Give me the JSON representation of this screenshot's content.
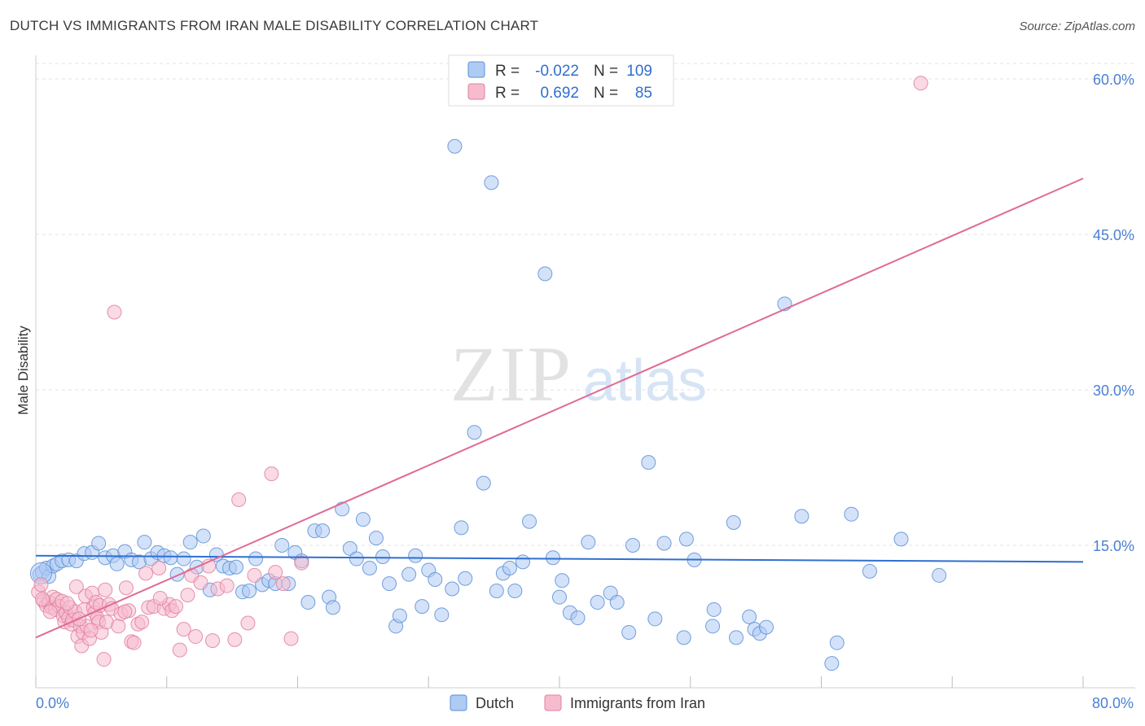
{
  "title": "DUTCH VS IMMIGRANTS FROM IRAN MALE DISABILITY CORRELATION CHART",
  "source": "Source: ZipAtlas.com",
  "watermark": {
    "zip": "ZIP",
    "atlas": "atlas"
  },
  "legend_top": [
    {
      "r_label": "R =",
      "r_value": "-0.022",
      "n_label": "N =",
      "n_value": "109",
      "fill": "#aecbf4",
      "stroke": "#5b8fd6"
    },
    {
      "r_label": "R =",
      "r_value": "0.692",
      "n_label": "N =",
      "n_value": "85",
      "fill": "#f6bccd",
      "stroke": "#e07fa0"
    }
  ],
  "legend_bottom": [
    {
      "label": "Dutch",
      "fill": "#aecbf4",
      "stroke": "#5b8fd6"
    },
    {
      "label": "Immigrants from Iran",
      "fill": "#f6bccd",
      "stroke": "#e07fa0"
    }
  ],
  "chart_data": {
    "type": "scatter",
    "title": "DUTCH VS IMMIGRANTS FROM IRAN MALE DISABILITY CORRELATION CHART",
    "xlabel": "",
    "ylabel": "Male Disability",
    "xlim": [
      0,
      80
    ],
    "ylim": [
      0,
      62
    ],
    "x_tick_labels": [
      "0.0%",
      "80.0%"
    ],
    "y_ticks": [
      15,
      30,
      45,
      60
    ],
    "y_tick_labels": [
      "15.0%",
      "30.0%",
      "45.0%",
      "60.0%"
    ],
    "grid": true,
    "legend_position": "top-center",
    "series": [
      {
        "name": "Dutch",
        "color": "#5b8fd6",
        "fill": "#aecbf4",
        "trend": {
          "x": [
            0,
            80
          ],
          "y": [
            14.0,
            13.4
          ]
        },
        "points": [
          [
            0.3,
            12.2
          ],
          [
            0.5,
            12.4
          ],
          [
            0.8,
            12.8
          ],
          [
            1.0,
            12.0
          ],
          [
            1.3,
            13.0
          ],
          [
            1.6,
            13.2
          ],
          [
            2.0,
            13.5
          ],
          [
            2.5,
            13.6
          ],
          [
            3.1,
            13.5
          ],
          [
            3.7,
            14.2
          ],
          [
            4.3,
            14.3
          ],
          [
            4.8,
            15.2
          ],
          [
            5.3,
            13.8
          ],
          [
            5.9,
            14.0
          ],
          [
            6.2,
            13.2
          ],
          [
            6.8,
            14.4
          ],
          [
            7.3,
            13.6
          ],
          [
            7.9,
            13.4
          ],
          [
            8.3,
            15.3
          ],
          [
            8.8,
            13.7
          ],
          [
            9.3,
            14.3
          ],
          [
            9.8,
            14.0
          ],
          [
            10.3,
            13.8
          ],
          [
            10.8,
            12.2
          ],
          [
            11.3,
            13.7
          ],
          [
            11.8,
            15.3
          ],
          [
            12.3,
            12.9
          ],
          [
            12.8,
            15.9
          ],
          [
            13.3,
            10.7
          ],
          [
            13.8,
            14.1
          ],
          [
            14.3,
            13.0
          ],
          [
            14.8,
            12.8
          ],
          [
            15.3,
            12.9
          ],
          [
            15.8,
            10.5
          ],
          [
            16.3,
            10.6
          ],
          [
            16.8,
            13.7
          ],
          [
            17.3,
            11.2
          ],
          [
            17.8,
            11.6
          ],
          [
            18.3,
            11.3
          ],
          [
            18.8,
            15.0
          ],
          [
            19.3,
            11.3
          ],
          [
            19.8,
            14.3
          ],
          [
            20.3,
            13.5
          ],
          [
            20.8,
            9.5
          ],
          [
            21.3,
            16.4
          ],
          [
            21.9,
            16.4
          ],
          [
            22.4,
            10.0
          ],
          [
            22.7,
            9.0
          ],
          [
            23.4,
            18.5
          ],
          [
            24.0,
            14.7
          ],
          [
            24.5,
            13.7
          ],
          [
            25.0,
            17.5
          ],
          [
            25.5,
            12.8
          ],
          [
            26.0,
            15.7
          ],
          [
            26.5,
            13.9
          ],
          [
            27.0,
            11.3
          ],
          [
            27.5,
            7.2
          ],
          [
            27.8,
            8.2
          ],
          [
            28.5,
            12.2
          ],
          [
            29.0,
            14.0
          ],
          [
            29.5,
            9.1
          ],
          [
            30.0,
            12.6
          ],
          [
            30.5,
            11.7
          ],
          [
            31.0,
            8.3
          ],
          [
            31.8,
            10.8
          ],
          [
            32.0,
            53.5
          ],
          [
            32.5,
            16.7
          ],
          [
            32.8,
            11.8
          ],
          [
            33.5,
            25.9
          ],
          [
            34.2,
            21.0
          ],
          [
            34.8,
            50.0
          ],
          [
            35.2,
            10.6
          ],
          [
            35.7,
            12.3
          ],
          [
            36.2,
            12.8
          ],
          [
            36.6,
            10.6
          ],
          [
            37.2,
            13.4
          ],
          [
            37.7,
            17.3
          ],
          [
            38.9,
            41.2
          ],
          [
            39.5,
            13.8
          ],
          [
            40.0,
            10.0
          ],
          [
            40.2,
            11.6
          ],
          [
            40.8,
            8.5
          ],
          [
            41.4,
            8.0
          ],
          [
            42.2,
            15.3
          ],
          [
            42.9,
            9.5
          ],
          [
            43.9,
            10.4
          ],
          [
            44.4,
            9.5
          ],
          [
            45.3,
            6.6
          ],
          [
            45.6,
            15.0
          ],
          [
            46.8,
            23.0
          ],
          [
            47.3,
            7.9
          ],
          [
            48.0,
            15.2
          ],
          [
            49.5,
            6.1
          ],
          [
            49.7,
            15.6
          ],
          [
            50.3,
            13.6
          ],
          [
            51.7,
            7.2
          ],
          [
            51.8,
            8.8
          ],
          [
            53.3,
            17.2
          ],
          [
            53.5,
            6.1
          ],
          [
            54.5,
            8.1
          ],
          [
            54.9,
            6.9
          ],
          [
            55.3,
            6.5
          ],
          [
            55.8,
            7.1
          ],
          [
            57.2,
            38.3
          ],
          [
            58.5,
            17.8
          ],
          [
            60.8,
            3.6
          ],
          [
            61.2,
            5.6
          ],
          [
            62.3,
            18.0
          ],
          [
            63.7,
            12.5
          ],
          [
            66.1,
            15.6
          ],
          [
            69.0,
            12.1
          ]
        ],
        "point_sizes": [
          [
            0.3,
            14
          ],
          [
            0.5,
            12
          ],
          [
            0.8,
            11
          ]
        ]
      },
      {
        "name": "Immigrants from Iran",
        "color": "#e07fa0",
        "fill": "#f6bccd",
        "trend": {
          "x": [
            0,
            80
          ],
          "y": [
            6.1,
            50.4
          ]
        },
        "points": [
          [
            0.2,
            10.5
          ],
          [
            0.4,
            11.2
          ],
          [
            0.6,
            9.6
          ],
          [
            0.8,
            9.2
          ],
          [
            1.0,
            9.5
          ],
          [
            1.2,
            9.0
          ],
          [
            1.3,
            10.0
          ],
          [
            1.5,
            8.8
          ],
          [
            1.6,
            9.8
          ],
          [
            1.8,
            9.1
          ],
          [
            2.0,
            9.6
          ],
          [
            2.1,
            8.2
          ],
          [
            2.2,
            7.6
          ],
          [
            2.3,
            8.5
          ],
          [
            2.5,
            8.0
          ],
          [
            2.6,
            9.0
          ],
          [
            2.7,
            7.4
          ],
          [
            2.8,
            7.8
          ],
          [
            3.0,
            8.6
          ],
          [
            3.1,
            11.0
          ],
          [
            3.2,
            6.2
          ],
          [
            3.4,
            7.2
          ],
          [
            3.5,
            5.3
          ],
          [
            3.6,
            6.6
          ],
          [
            3.7,
            8.8
          ],
          [
            3.8,
            10.1
          ],
          [
            3.9,
            7.2
          ],
          [
            4.1,
            6.0
          ],
          [
            4.3,
            10.4
          ],
          [
            4.4,
            9.0
          ],
          [
            4.5,
            8.5
          ],
          [
            4.6,
            9.5
          ],
          [
            4.7,
            8.0
          ],
          [
            4.8,
            7.6
          ],
          [
            4.9,
            9.2
          ],
          [
            5.0,
            6.6
          ],
          [
            5.2,
            4.0
          ],
          [
            5.3,
            10.7
          ],
          [
            5.4,
            7.6
          ],
          [
            5.6,
            9.3
          ],
          [
            5.8,
            8.9
          ],
          [
            6.0,
            37.5
          ],
          [
            6.3,
            7.2
          ],
          [
            6.5,
            8.4
          ],
          [
            6.9,
            10.9
          ],
          [
            7.1,
            8.7
          ],
          [
            7.3,
            5.7
          ],
          [
            7.5,
            5.6
          ],
          [
            7.8,
            7.4
          ],
          [
            8.1,
            7.6
          ],
          [
            8.4,
            12.3
          ],
          [
            8.6,
            9.0
          ],
          [
            9.0,
            9.1
          ],
          [
            9.4,
            12.8
          ],
          [
            9.8,
            8.9
          ],
          [
            10.2,
            9.3
          ],
          [
            10.4,
            8.7
          ],
          [
            10.7,
            9.1
          ],
          [
            11.0,
            4.9
          ],
          [
            11.3,
            6.9
          ],
          [
            11.6,
            10.2
          ],
          [
            11.9,
            12.1
          ],
          [
            12.2,
            6.2
          ],
          [
            12.6,
            11.4
          ],
          [
            13.2,
            13.0
          ],
          [
            13.5,
            5.8
          ],
          [
            13.9,
            10.8
          ],
          [
            14.6,
            11.1
          ],
          [
            15.2,
            5.9
          ],
          [
            15.5,
            19.4
          ],
          [
            16.2,
            7.5
          ],
          [
            16.7,
            12.1
          ],
          [
            18.0,
            21.9
          ],
          [
            18.3,
            12.4
          ],
          [
            18.9,
            11.3
          ],
          [
            19.5,
            6.0
          ],
          [
            20.3,
            13.3
          ],
          [
            67.6,
            59.6
          ],
          [
            0.5,
            9.8
          ],
          [
            1.1,
            8.6
          ],
          [
            2.4,
            9.4
          ],
          [
            3.3,
            7.9
          ],
          [
            4.2,
            6.8
          ],
          [
            6.8,
            8.6
          ],
          [
            9.5,
            9.9
          ]
        ]
      }
    ]
  }
}
